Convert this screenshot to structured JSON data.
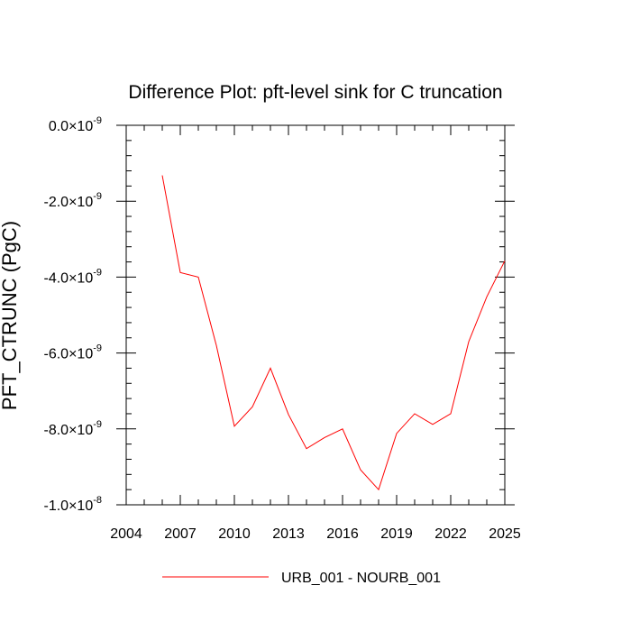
{
  "chart_data": {
    "type": "line",
    "title": "Difference Plot: pft-level sink for C truncation",
    "xlabel": "",
    "ylabel": "PFT_CTRUNC  (PgC)",
    "xlim": [
      2004,
      2025
    ],
    "ylim": [
      -1e-08,
      0.0
    ],
    "x_ticks": [
      2004,
      2007,
      2010,
      2013,
      2016,
      2019,
      2022,
      2025
    ],
    "x_tick_labels": [
      "2004",
      "2007",
      "2010",
      "2013",
      "2016",
      "2019",
      "2022",
      "2025"
    ],
    "y_ticks": [
      0.0,
      -2e-09,
      -4e-09,
      -6e-09,
      -8e-09,
      -1e-08
    ],
    "y_tick_labels": [
      {
        "mantissa": "0.0×10",
        "exponent": "-9"
      },
      {
        "mantissa": "-2.0×10",
        "exponent": "-9"
      },
      {
        "mantissa": "-4.0×10",
        "exponent": "-9"
      },
      {
        "mantissa": "-6.0×10",
        "exponent": "-9"
      },
      {
        "mantissa": "-8.0×10",
        "exponent": "-9"
      },
      {
        "mantissa": "-1.0×10",
        "exponent": "-8"
      }
    ],
    "grid": false,
    "legend_position": "bottom-center",
    "series": [
      {
        "name": "URB_001 - NOURB_001",
        "color": "#ff0000",
        "x": [
          2006,
          2007,
          2008,
          2009,
          2010,
          2011,
          2012,
          2013,
          2014,
          2015,
          2016,
          2017,
          2018,
          2019,
          2020,
          2021,
          2022,
          2023,
          2024,
          2025
        ],
        "y": [
          -1.32e-09,
          -3.88e-09,
          -4e-09,
          -5.8e-09,
          -7.93e-09,
          -7.42e-09,
          -6.4e-09,
          -7.62e-09,
          -8.52e-09,
          -8.23e-09,
          -8e-09,
          -9.08e-09,
          -9.6e-09,
          -8.12e-09,
          -7.6e-09,
          -7.88e-09,
          -7.6e-09,
          -5.7e-09,
          -4.52e-09,
          -3.57e-09
        ]
      }
    ]
  }
}
